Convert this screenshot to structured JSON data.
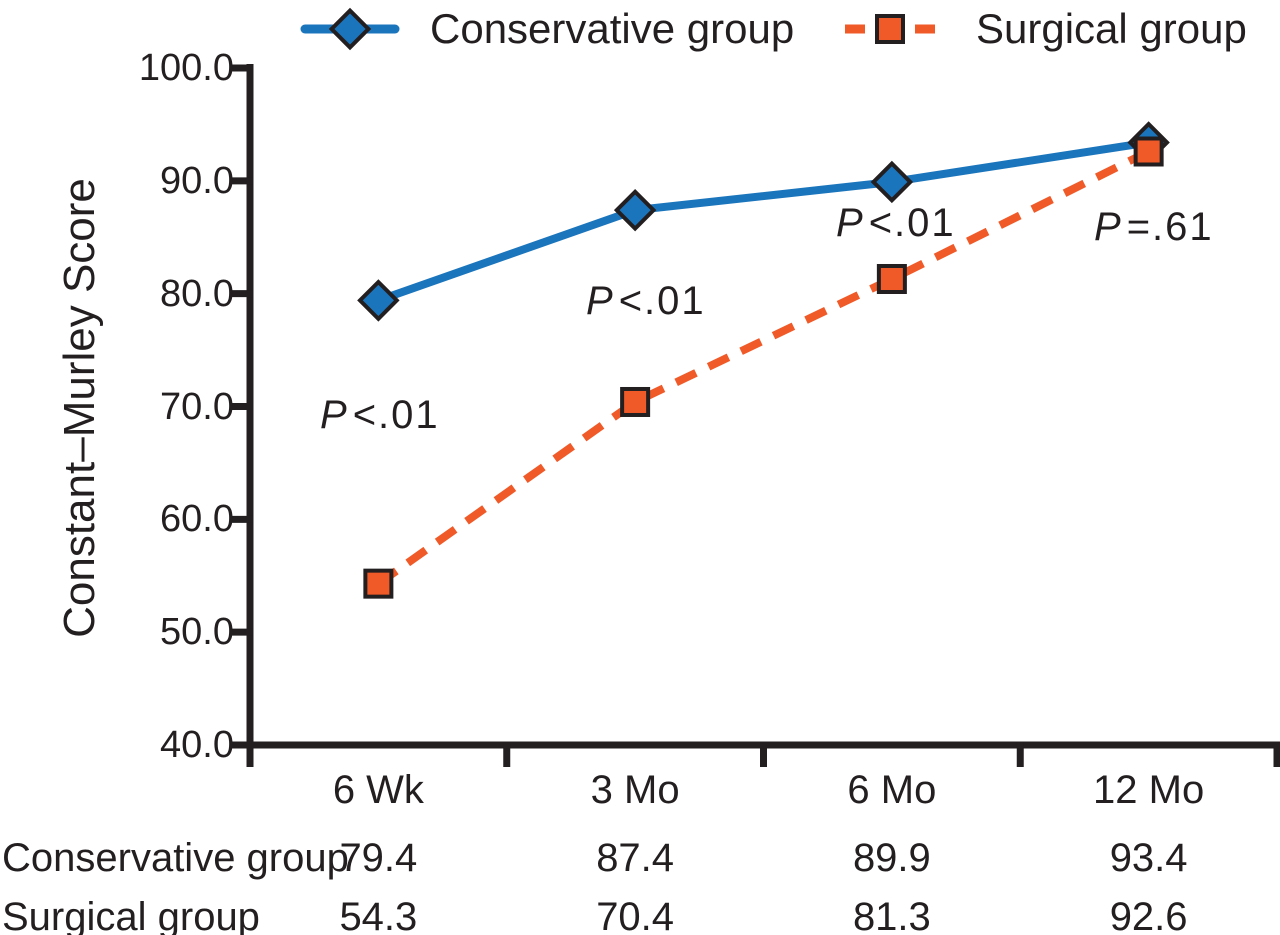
{
  "chart_data": {
    "type": "line",
    "title": "",
    "xlabel": "",
    "ylabel": "Constant–Murley Score",
    "ylim": [
      40,
      100
    ],
    "yticks": [
      "100.0",
      "90.0",
      "80.0",
      "70.0",
      "60.0",
      "50.0",
      "40.0"
    ],
    "categories": [
      "6 Wk",
      "3 Mo",
      "6 Mo",
      "12 Mo"
    ],
    "series": [
      {
        "name": "Conservative group",
        "values": [
          79.4,
          87.4,
          89.9,
          93.4
        ],
        "color": "#1b75bc",
        "marker": "diamond",
        "line_style": "solid"
      },
      {
        "name": "Surgical group",
        "values": [
          54.3,
          70.4,
          81.3,
          92.6
        ],
        "color": "#f05a28",
        "marker": "square",
        "line_style": "dashed"
      }
    ],
    "annotations": [
      "P<.01",
      "P<.01",
      "P<.01",
      "P=.61"
    ],
    "legend_position": "top",
    "grid": false,
    "axis_color": "#231f20"
  },
  "table": {
    "rows": [
      {
        "label": "Conservative group",
        "values": [
          "79.4",
          "87.4",
          "89.9",
          "93.4"
        ]
      },
      {
        "label": "Surgical group",
        "values": [
          "54.3",
          "70.4",
          "81.3",
          "92.6"
        ]
      }
    ]
  }
}
